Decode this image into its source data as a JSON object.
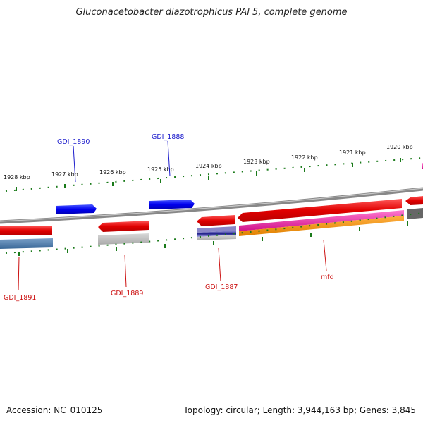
{
  "title": "Gluconacetobacter diazotrophicus PAl 5, complete genome",
  "footer": {
    "accession": "Accession: NC_010125",
    "summary": "Topology: circular; Length: 3,944,163 bp; Genes: 3,845"
  },
  "scale": {
    "labels": [
      "1928 kbp",
      "1927 kbp",
      "1926 kbp",
      "1925 kbp",
      "1924 kbp",
      "1923 kbp",
      "1922 kbp",
      "1921 kbp",
      "1920 kbp"
    ]
  },
  "genes": {
    "labels_top": [
      "GDI_1890",
      "GDI_1888"
    ],
    "labels_bottom": [
      "GDI_1891",
      "GDI_1889",
      "GDI_1887",
      "mfd"
    ]
  },
  "colors": {
    "forward_gene": "#0a1ee8",
    "reverse_gene": "#e8141e",
    "label_top": "#1a1acc",
    "label_bottom": "#cc1111",
    "backbone": "#888888",
    "tick": "#1a7a1a"
  }
}
